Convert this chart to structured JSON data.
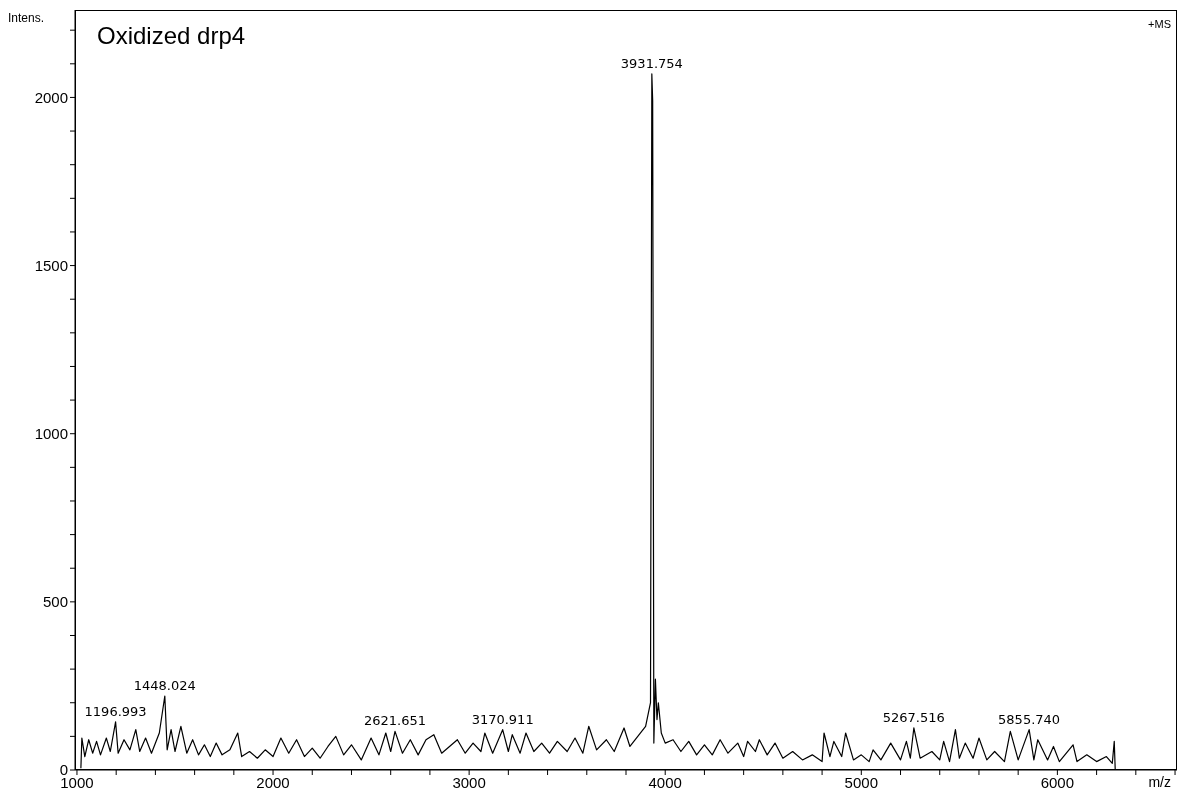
{
  "chart_data": {
    "type": "line",
    "title": "Oxidized drp4",
    "xlabel": "m/z",
    "ylabel": "Intens.",
    "annotations": [
      "+MS",
      {
        "text": "1196.993",
        "x": 1196.993,
        "y": 143
      },
      {
        "text": "1448.024",
        "x": 1448.024,
        "y": 220
      },
      {
        "text": "2621.651",
        "x": 2621.651,
        "y": 115
      },
      {
        "text": "3170.911",
        "x": 3170.911,
        "y": 120
      },
      {
        "text": "3931.754",
        "x": 3931.754,
        "y": 2070
      },
      {
        "text": "5267.516",
        "x": 5267.516,
        "y": 125
      },
      {
        "text": "5855.740",
        "x": 5855.74,
        "y": 120
      }
    ],
    "xlim": [
      990,
      6610
    ],
    "xticks": [
      1000,
      {
        "value": 1200,
        "label": null
      },
      {
        "value": 1400,
        "label": null
      },
      {
        "value": 1600,
        "label": null
      },
      {
        "value": 1800,
        "label": null
      },
      2000,
      {
        "value": 2200,
        "label": null
      },
      {
        "value": 2400,
        "label": null
      },
      {
        "value": 2600,
        "label": null
      },
      {
        "value": 2800,
        "label": null
      },
      3000,
      {
        "value": 3200,
        "label": null
      },
      {
        "value": 3400,
        "label": null
      },
      {
        "value": 3600,
        "label": null
      },
      {
        "value": 3800,
        "label": null
      },
      4000,
      {
        "value": 4200,
        "label": null
      },
      {
        "value": 4400,
        "label": null
      },
      {
        "value": 4600,
        "label": null
      },
      {
        "value": 4800,
        "label": null
      },
      5000,
      {
        "value": 5200,
        "label": null
      },
      {
        "value": 5400,
        "label": null
      },
      {
        "value": 5600,
        "label": null
      },
      {
        "value": 5800,
        "label": null
      },
      6000,
      {
        "value": 6200,
        "label": null
      },
      {
        "value": 6400,
        "label": null
      },
      {
        "value": 6600,
        "label": null
      }
    ],
    "ylim": [
      0,
      2260
    ],
    "yticks": [
      0,
      {
        "value": 100,
        "label": null
      },
      {
        "value": 200,
        "label": null
      },
      {
        "value": 300,
        "label": null
      },
      {
        "value": 400,
        "label": null
      },
      500,
      {
        "value": 600,
        "label": null
      },
      {
        "value": 700,
        "label": null
      },
      {
        "value": 800,
        "label": null
      },
      {
        "value": 900,
        "label": null
      },
      1000,
      {
        "value": 1100,
        "label": null
      },
      {
        "value": 1200,
        "label": null
      },
      {
        "value": 1300,
        "label": null
      },
      {
        "value": 1400,
        "label": null
      },
      1500,
      {
        "value": 1600,
        "label": null
      },
      {
        "value": 1700,
        "label": null
      },
      {
        "value": 1800,
        "label": null
      },
      {
        "value": 1900,
        "label": null
      },
      2000,
      {
        "value": 2100,
        "label": null
      },
      {
        "value": 2200,
        "label": null
      }
    ],
    "marker": "none",
    "line_style": "solid",
    "series": [
      {
        "color": "#000000",
        "x": [
          1020,
          1025,
          1040,
          1060,
          1080,
          1100,
          1120,
          1150,
          1170,
          1197,
          1210,
          1240,
          1270,
          1300,
          1320,
          1350,
          1380,
          1420,
          1448,
          1460,
          1480,
          1500,
          1530,
          1560,
          1590,
          1620,
          1650,
          1680,
          1710,
          1740,
          1780,
          1820,
          1840,
          1880,
          1920,
          1960,
          2000,
          2040,
          2080,
          2120,
          2160,
          2200,
          2240,
          2280,
          2320,
          2360,
          2400,
          2450,
          2500,
          2540,
          2575,
          2600,
          2622,
          2660,
          2700,
          2740,
          2780,
          2820,
          2860,
          2900,
          2940,
          2980,
          3020,
          3060,
          3080,
          3120,
          3171,
          3200,
          3220,
          3260,
          3290,
          3330,
          3370,
          3410,
          3450,
          3500,
          3540,
          3580,
          3610,
          3650,
          3700,
          3740,
          3790,
          3820,
          3860,
          3900,
          3925,
          3931.754,
          3936,
          3942,
          3950,
          3958,
          3965,
          3980,
          4000,
          4040,
          4080,
          4120,
          4160,
          4200,
          4240,
          4280,
          4320,
          4370,
          4400,
          4420,
          4460,
          4480,
          4520,
          4560,
          4600,
          4650,
          4700,
          4750,
          4800,
          4810,
          4840,
          4860,
          4900,
          4920,
          4960,
          5000,
          5040,
          5060,
          5100,
          5150,
          5200,
          5230,
          5250,
          5268,
          5300,
          5360,
          5400,
          5420,
          5450,
          5480,
          5500,
          5530,
          5570,
          5600,
          5640,
          5680,
          5730,
          5760,
          5800,
          5856,
          5880,
          5900,
          5950,
          5980,
          6010,
          6080,
          6100,
          6150,
          6200,
          6250,
          6280,
          6290,
          6295
        ],
        "values": [
          5,
          95,
          40,
          90,
          50,
          85,
          45,
          95,
          55,
          143,
          50,
          90,
          60,
          120,
          55,
          95,
          50,
          110,
          220,
          60,
          120,
          55,
          130,
          50,
          90,
          45,
          75,
          40,
          80,
          45,
          60,
          110,
          40,
          55,
          35,
          60,
          40,
          95,
          50,
          90,
          40,
          65,
          35,
          70,
          100,
          45,
          75,
          30,
          95,
          45,
          110,
          55,
          115,
          50,
          90,
          45,
          90,
          105,
          50,
          70,
          90,
          50,
          80,
          55,
          110,
          50,
          120,
          55,
          105,
          50,
          110,
          55,
          80,
          50,
          85,
          55,
          95,
          50,
          130,
          60,
          90,
          55,
          125,
          70,
          100,
          130,
          200,
          2070,
          1990,
          80,
          270,
          150,
          200,
          110,
          80,
          90,
          55,
          85,
          45,
          75,
          45,
          90,
          50,
          80,
          40,
          85,
          55,
          90,
          45,
          80,
          35,
          55,
          30,
          45,
          25,
          110,
          40,
          85,
          40,
          110,
          30,
          45,
          25,
          60,
          30,
          80,
          30,
          85,
          35,
          125,
          35,
          55,
          30,
          85,
          25,
          120,
          35,
          80,
          35,
          95,
          30,
          55,
          25,
          115,
          30,
          120,
          30,
          90,
          30,
          70,
          25,
          75,
          25,
          45,
          25,
          40,
          20,
          85,
          0
        ]
      }
    ]
  }
}
